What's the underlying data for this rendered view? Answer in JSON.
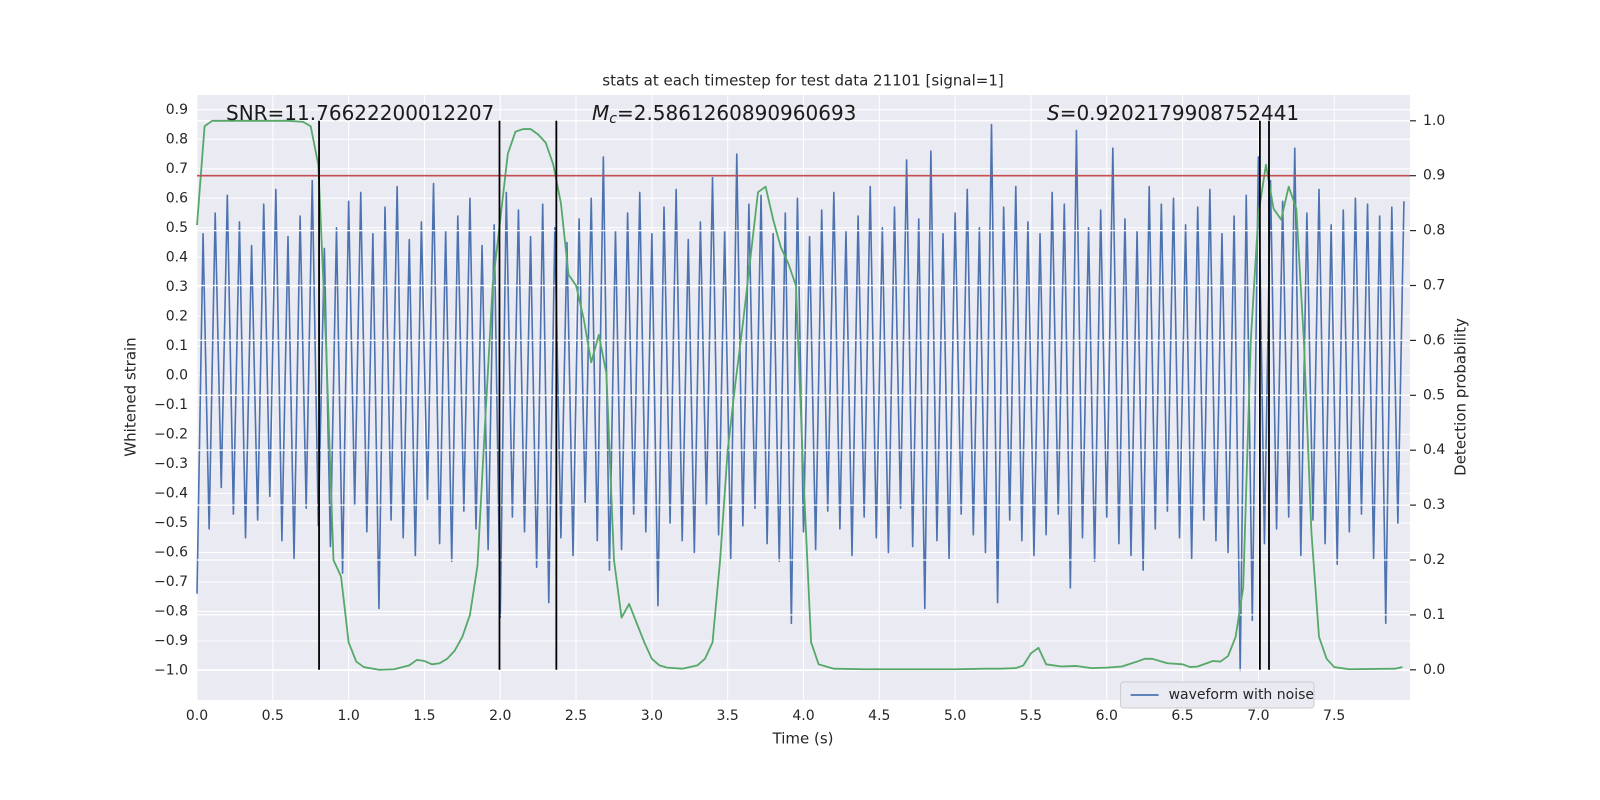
{
  "chart_data": {
    "type": "line",
    "title": "stats at each timestep for test data 21101 [signal=1]",
    "xlabel": "Time (s)",
    "ylabel": "Whitened strain",
    "y2label": "Detection probability",
    "xlim": [
      0,
      8
    ],
    "ylim": [
      -1.1,
      0.95
    ],
    "y2lim": [
      -0.055,
      1.047
    ],
    "xticks": [
      {
        "value": 0,
        "label": "0.0"
      },
      0.5,
      {
        "value": 1,
        "label": "1.0"
      },
      1.5,
      {
        "value": 2,
        "label": "2.0"
      },
      2.5,
      {
        "value": 3,
        "label": "3.0"
      },
      3.5,
      {
        "value": 4,
        "label": "4.0"
      },
      4.5,
      {
        "value": 5,
        "label": "5.0"
      },
      5.5,
      {
        "value": 6,
        "label": "6.0"
      },
      6.5,
      {
        "value": 7,
        "label": "7.0"
      },
      7.5
    ],
    "yticks": [
      {
        "value": -1,
        "label": "−1.0"
      },
      {
        "value": -0.9,
        "label": "−0.9"
      },
      {
        "value": -0.8,
        "label": "−0.8"
      },
      {
        "value": -0.7,
        "label": "−0.7"
      },
      {
        "value": -0.6,
        "label": "−0.6"
      },
      {
        "value": -0.5,
        "label": "−0.5"
      },
      {
        "value": -0.4,
        "label": "−0.4"
      },
      {
        "value": -0.3,
        "label": "−0.3"
      },
      {
        "value": -0.2,
        "label": "−0.2"
      },
      {
        "value": -0.1,
        "label": "−0.1"
      },
      {
        "value": 0,
        "label": "0.0"
      },
      0.1,
      0.2,
      0.3,
      0.4,
      0.5,
      0.6,
      0.7,
      0.8,
      0.9
    ],
    "y2ticks": [
      {
        "value": 0,
        "label": "0.0"
      },
      0.1,
      0.2,
      0.3,
      0.4,
      0.5,
      0.6,
      0.7,
      0.8,
      0.9,
      {
        "value": 1,
        "label": "1.0"
      }
    ],
    "grid": true,
    "legend": "lower right",
    "series": [
      {
        "name": "waveform with noise",
        "color": "#4c72b0",
        "x": [
          0,
          0.04,
          0.08,
          0.12,
          0.16,
          0.2,
          0.24,
          0.28,
          0.32,
          0.36,
          0.4,
          0.44,
          0.48,
          0.52,
          0.56,
          0.6,
          0.64,
          0.68,
          0.72,
          0.76,
          0.8,
          0.84,
          0.88,
          0.92,
          0.96,
          1.0,
          1.04,
          1.08,
          1.12,
          1.16,
          1.2,
          1.24,
          1.28,
          1.32,
          1.36,
          1.4,
          1.44,
          1.48,
          1.52,
          1.56,
          1.6,
          1.64,
          1.68,
          1.72,
          1.76,
          1.8,
          1.84,
          1.88,
          1.92,
          1.96,
          2.0,
          2.04,
          2.08,
          2.12,
          2.16,
          2.2,
          2.24,
          2.28,
          2.32,
          2.36,
          2.4,
          2.44,
          2.48,
          2.52,
          2.56,
          2.6,
          2.64,
          2.68,
          2.72,
          2.76,
          2.8,
          2.84,
          2.88,
          2.92,
          2.96,
          3.0,
          3.04,
          3.08,
          3.12,
          3.16,
          3.2,
          3.24,
          3.28,
          3.32,
          3.36,
          3.4,
          3.44,
          3.48,
          3.52,
          3.56,
          3.6,
          3.64,
          3.68,
          3.72,
          3.76,
          3.8,
          3.84,
          3.88,
          3.92,
          3.96,
          4.0,
          4.04,
          4.08,
          4.12,
          4.16,
          4.2,
          4.24,
          4.28,
          4.32,
          4.36,
          4.4,
          4.44,
          4.48,
          4.52,
          4.56,
          4.6,
          4.64,
          4.68,
          4.72,
          4.76,
          4.8,
          4.84,
          4.88,
          4.92,
          4.96,
          5.0,
          5.04,
          5.08,
          5.12,
          5.16,
          5.2,
          5.24,
          5.28,
          5.32,
          5.36,
          5.4,
          5.44,
          5.48,
          5.52,
          5.56,
          5.6,
          5.64,
          5.68,
          5.72,
          5.76,
          5.8,
          5.84,
          5.88,
          5.92,
          5.96,
          6.0,
          6.04,
          6.08,
          6.12,
          6.16,
          6.2,
          6.24,
          6.28,
          6.32,
          6.36,
          6.4,
          6.44,
          6.48,
          6.52,
          6.56,
          6.6,
          6.64,
          6.68,
          6.72,
          6.76,
          6.8,
          6.84,
          6.88,
          6.92,
          6.96,
          7.0,
          7.04,
          7.08,
          7.12,
          7.16,
          7.2,
          7.24,
          7.28,
          7.32,
          7.36,
          7.4,
          7.44,
          7.48,
          7.52,
          7.56,
          7.6,
          7.64,
          7.68,
          7.72,
          7.76,
          7.8,
          7.84,
          7.88,
          7.92,
          7.96
        ],
        "values": [
          -0.74,
          0.48,
          -0.52,
          0.55,
          -0.38,
          0.61,
          -0.47,
          0.52,
          -0.55,
          0.44,
          -0.49,
          0.58,
          -0.41,
          0.63,
          -0.56,
          0.47,
          -0.62,
          0.54,
          -0.45,
          0.66,
          -0.51,
          0.43,
          -0.58,
          0.5,
          -0.67,
          0.59,
          -0.44,
          0.62,
          -0.53,
          0.48,
          -0.79,
          0.57,
          -0.49,
          0.64,
          -0.55,
          0.46,
          -0.61,
          0.52,
          -0.42,
          0.65,
          -0.57,
          0.49,
          -0.63,
          0.54,
          -0.46,
          0.6,
          -0.52,
          0.44,
          -0.59,
          0.51,
          -0.82,
          0.62,
          -0.48,
          0.56,
          -0.53,
          0.47,
          -0.65,
          0.58,
          -0.77,
          0.5,
          -0.55,
          0.45,
          -0.61,
          0.53,
          -0.43,
          0.6,
          -0.56,
          0.74,
          -0.66,
          0.49,
          -0.59,
          0.55,
          -0.47,
          0.62,
          -0.53,
          0.48,
          -0.78,
          0.57,
          -0.5,
          0.63,
          -0.56,
          0.46,
          -0.6,
          0.52,
          -0.44,
          0.67,
          -0.54,
          0.49,
          -0.62,
          0.75,
          -0.51,
          0.58,
          -0.45,
          0.61,
          -0.57,
          0.48,
          -0.63,
          0.55,
          -0.84,
          0.6,
          -0.53,
          0.47,
          -0.59,
          0.56,
          -0.46,
          0.62,
          -0.52,
          0.49,
          -0.61,
          0.54,
          -0.48,
          0.64,
          -0.55,
          0.5,
          -0.6,
          0.57,
          -0.45,
          0.73,
          -0.58,
          0.53,
          -0.79,
          0.76,
          -0.56,
          0.48,
          -0.62,
          0.55,
          -0.47,
          0.63,
          -0.54,
          0.5,
          -0.6,
          0.85,
          -0.77,
          0.57,
          -0.49,
          0.64,
          -0.56,
          0.52,
          -0.61,
          0.48,
          -0.54,
          0.62,
          -0.47,
          0.58,
          -0.72,
          0.83,
          -0.55,
          0.5,
          -0.63,
          0.56,
          -0.48,
          0.77,
          -0.57,
          0.53,
          -0.61,
          0.49,
          -0.66,
          0.64,
          -0.52,
          0.58,
          -0.46,
          0.6,
          -0.55,
          0.51,
          -0.62,
          0.57,
          -0.49,
          0.63,
          -0.56,
          0.48,
          -0.6,
          0.54,
          -1.0,
          0.61,
          -0.83,
          0.74,
          -0.57,
          0.66,
          -0.52,
          0.59,
          -0.48,
          0.77,
          -0.61,
          0.55,
          -0.49,
          0.63,
          -0.57,
          0.51,
          -0.64,
          0.56,
          -0.53,
          0.6,
          -0.47,
          0.58,
          -0.62,
          0.54,
          -0.84,
          0.57,
          -0.5,
          0.59
        ]
      },
      {
        "color": "#55a868",
        "axis": "y2",
        "x": [
          0,
          0.05,
          0.1,
          0.2,
          0.3,
          0.4,
          0.5,
          0.6,
          0.7,
          0.75,
          0.8,
          0.85,
          0.9,
          0.95,
          1.0,
          1.05,
          1.1,
          1.2,
          1.3,
          1.4,
          1.45,
          1.5,
          1.55,
          1.6,
          1.65,
          1.7,
          1.75,
          1.8,
          1.85,
          1.9,
          1.95,
          2.0,
          2.05,
          2.1,
          2.15,
          2.2,
          2.25,
          2.3,
          2.35,
          2.4,
          2.45,
          2.5,
          2.55,
          2.6,
          2.65,
          2.7,
          2.75,
          2.8,
          2.85,
          2.9,
          2.95,
          3.0,
          3.05,
          3.1,
          3.2,
          3.3,
          3.35,
          3.4,
          3.45,
          3.5,
          3.55,
          3.6,
          3.65,
          3.7,
          3.75,
          3.8,
          3.85,
          3.9,
          3.95,
          4.0,
          4.05,
          4.1,
          4.2,
          4.4,
          4.6,
          4.8,
          5.0,
          5.2,
          5.3,
          5.4,
          5.45,
          5.5,
          5.55,
          5.6,
          5.7,
          5.8,
          5.9,
          6.0,
          6.1,
          6.2,
          6.25,
          6.3,
          6.4,
          6.5,
          6.55,
          6.6,
          6.7,
          6.75,
          6.8,
          6.85,
          6.9,
          6.95,
          7.0,
          7.05,
          7.1,
          7.15,
          7.2,
          7.25,
          7.3,
          7.35,
          7.4,
          7.45,
          7.5,
          7.6,
          7.9,
          7.95
        ],
        "values": [
          0.81,
          0.99,
          1.0,
          1.0,
          1.0,
          1.0,
          1.0,
          1.0,
          0.998,
          0.99,
          0.92,
          0.6,
          0.2,
          0.17,
          0.05,
          0.015,
          0.005,
          0.0,
          0.001,
          0.008,
          0.018,
          0.016,
          0.01,
          0.012,
          0.02,
          0.035,
          0.06,
          0.1,
          0.19,
          0.45,
          0.7,
          0.82,
          0.94,
          0.98,
          0.985,
          0.985,
          0.975,
          0.96,
          0.92,
          0.85,
          0.72,
          0.7,
          0.64,
          0.56,
          0.61,
          0.54,
          0.2,
          0.095,
          0.12,
          0.085,
          0.05,
          0.02,
          0.008,
          0.004,
          0.002,
          0.008,
          0.02,
          0.05,
          0.2,
          0.4,
          0.52,
          0.63,
          0.75,
          0.87,
          0.88,
          0.82,
          0.77,
          0.74,
          0.7,
          0.35,
          0.05,
          0.01,
          0.002,
          0.001,
          0.001,
          0.001,
          0.001,
          0.002,
          0.002,
          0.003,
          0.008,
          0.03,
          0.04,
          0.01,
          0.006,
          0.007,
          0.003,
          0.004,
          0.006,
          0.015,
          0.02,
          0.02,
          0.012,
          0.01,
          0.005,
          0.006,
          0.016,
          0.015,
          0.025,
          0.06,
          0.15,
          0.6,
          0.83,
          0.92,
          0.84,
          0.82,
          0.88,
          0.84,
          0.6,
          0.25,
          0.06,
          0.02,
          0.005,
          0.001,
          0.002,
          0.005
        ]
      }
    ],
    "hlines": [
      {
        "value": 0.9,
        "axis": "y2",
        "color": "#c44e52"
      }
    ],
    "vlines": {
      "values": [
        0.805,
        1.995,
        2.37,
        7.01,
        7.07
      ],
      "axis": "y2",
      "span": [
        0,
        1
      ],
      "color": "#000000"
    },
    "annotations": [
      {
        "text": "SNR=11.76622200012207"
      },
      {
        "symbol": "M",
        "subscript": "c",
        "text": "=2.5861260890960693"
      },
      {
        "symbol": "S",
        "text": "=0.9202179908752441"
      }
    ]
  }
}
